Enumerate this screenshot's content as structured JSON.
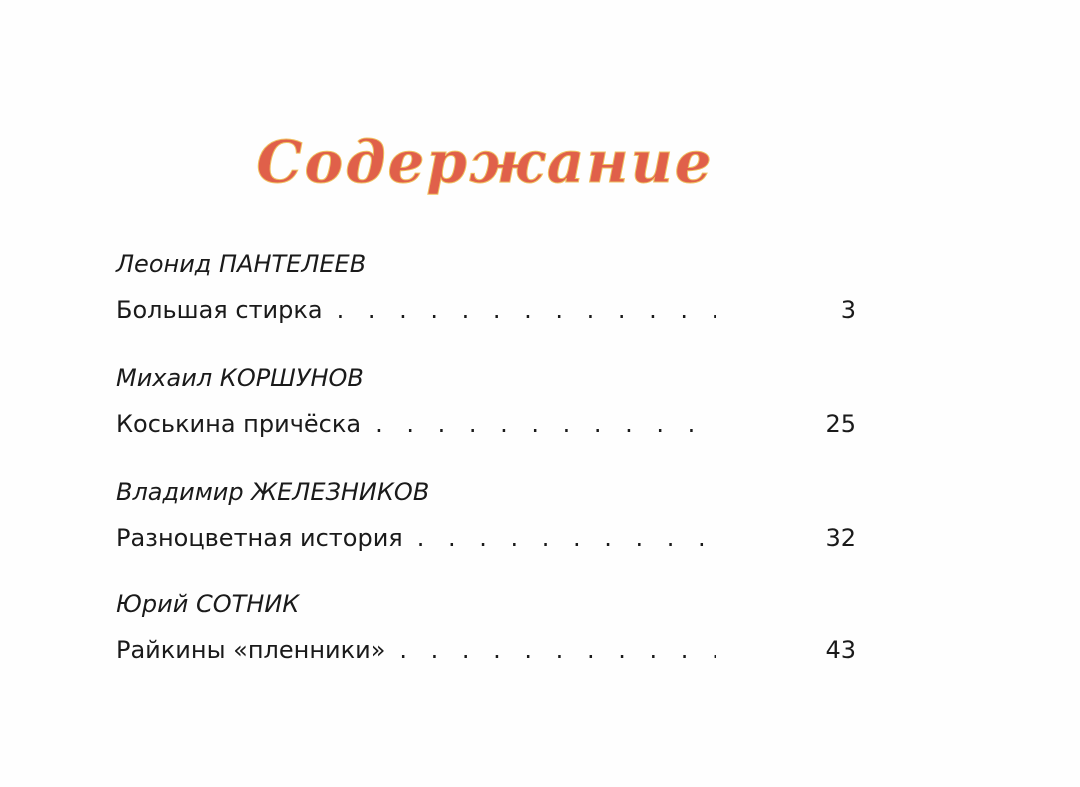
{
  "heading": "Содержание",
  "title_color": "#e0604a",
  "entries": [
    {
      "author": "Леонид ПАНТЕЛЕЕВ",
      "story": "Большая стирка",
      "page": "3"
    },
    {
      "author": "Михаил  КОРШУНОВ",
      "story": "Коськина причёска",
      "page": "25"
    },
    {
      "author": "Владимир ЖЕЛЕЗНИКОВ",
      "story": "Разноцветная история",
      "page": "32"
    },
    {
      "author": "Юрий  СОТНИК",
      "story": "Райкины «пленники»",
      "page": "43"
    }
  ]
}
